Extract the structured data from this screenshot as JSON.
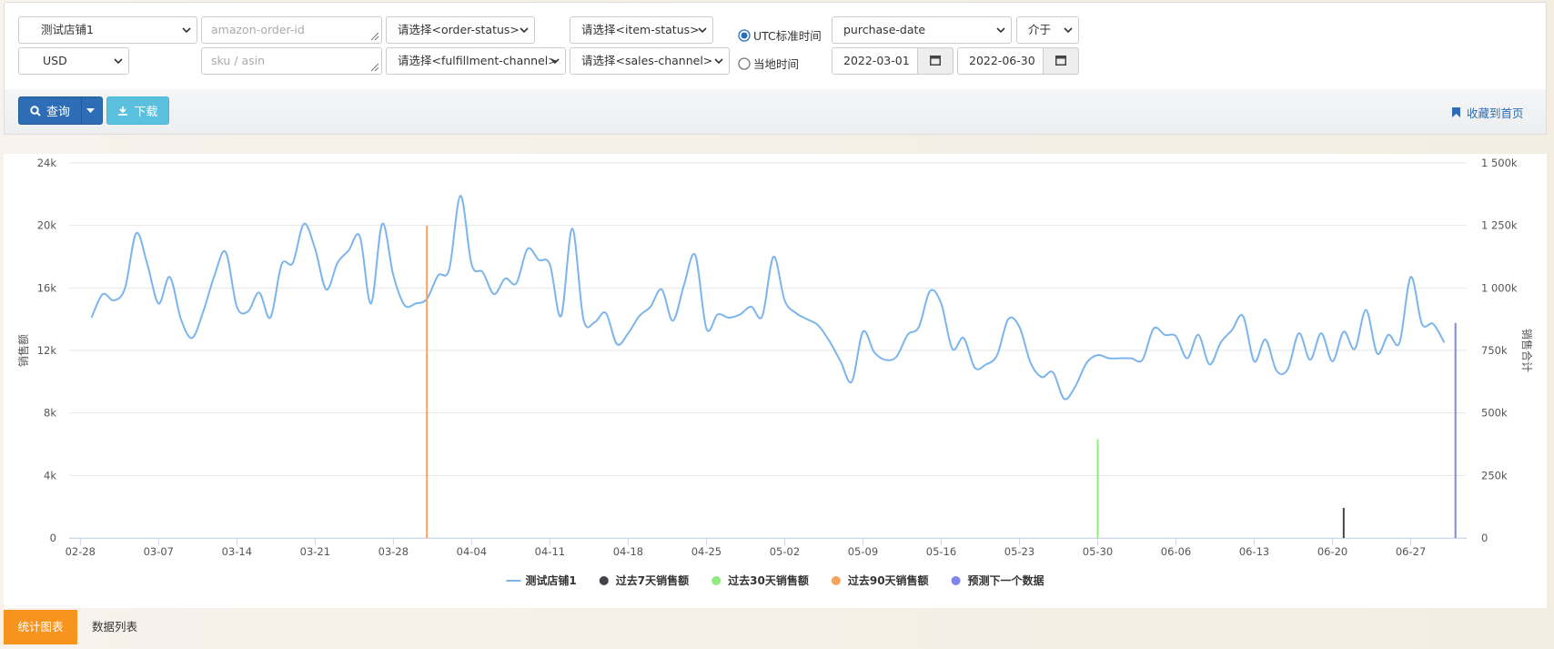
{
  "filters": {
    "store": "测试店铺1",
    "order_id_placeholder": "amazon-order-id",
    "order_status": "请选择<order-status>",
    "item_status": "请选择<item-status>",
    "utc": "UTC标准时间",
    "date_field": "purchase-date",
    "range_op": "介于",
    "currency": "USD",
    "sku_placeholder": "sku / asin",
    "fulfillment": "请选择<fulfillment-channel>",
    "sales_channel": "请选择<sales-channel>",
    "local": "当地时间",
    "start_date": "2022-03-01",
    "end_date": "2022-06-30"
  },
  "buttons": {
    "query": "查询",
    "download": "下载",
    "bookmark": "收藏到首页"
  },
  "tabs": [
    "统计图表",
    "数据列表"
  ],
  "chart_data": {
    "type": "line",
    "y_label": "销售额",
    "y2_label": "销售合计",
    "grid": true,
    "legend": "bottom",
    "xlim": [
      "02-27",
      "07-02"
    ],
    "xticks": [
      "02-28",
      "03-07",
      "03-14",
      "03-21",
      "03-28",
      "04-04",
      "04-11",
      "04-18",
      "04-25",
      "05-02",
      "05-09",
      "05-16",
      "05-23",
      "05-30",
      "06-06",
      "06-13",
      "06-20",
      "06-27"
    ],
    "ylim": [
      0,
      24000
    ],
    "yticks": [
      0,
      {
        "value": 4000,
        "label": "4k"
      },
      {
        "value": 8000,
        "label": "8k"
      },
      {
        "value": 12000,
        "label": "12k"
      },
      {
        "value": 16000,
        "label": "16k"
      },
      {
        "value": 20000,
        "label": "20k"
      },
      {
        "value": 24000,
        "label": "24k"
      }
    ],
    "y2lim": [
      0,
      1500000
    ],
    "y2ticks": [
      0,
      {
        "value": 250000,
        "label": "250k"
      },
      {
        "value": 500000,
        "label": "500k"
      },
      {
        "value": 750000,
        "label": "750k"
      },
      {
        "value": 1000000,
        "label": "1 000k"
      },
      {
        "value": 1250000,
        "label": "1 250k"
      },
      {
        "value": 1500000,
        "label": "1 500k"
      }
    ],
    "series": [
      {
        "name": "测试店铺1",
        "type": "line",
        "color": "#7cb5ec",
        "x": [
          "03-01",
          "03-02",
          "03-03",
          "03-04",
          "03-05",
          "03-06",
          "03-07",
          "03-08",
          "03-09",
          "03-10",
          "03-11",
          "03-12",
          "03-13",
          "03-14",
          "03-15",
          "03-16",
          "03-17",
          "03-18",
          "03-19",
          "03-20",
          "03-21",
          "03-22",
          "03-23",
          "03-24",
          "03-25",
          "03-26",
          "03-27",
          "03-28",
          "03-29",
          "03-30",
          "03-31",
          "04-01",
          "04-02",
          "04-03",
          "04-04",
          "04-05",
          "04-06",
          "04-07",
          "04-08",
          "04-09",
          "04-10",
          "04-11",
          "04-12",
          "04-13",
          "04-14",
          "04-15",
          "04-16",
          "04-17",
          "04-18",
          "04-19",
          "04-20",
          "04-21",
          "04-22",
          "04-23",
          "04-24",
          "04-25",
          "04-26",
          "04-27",
          "04-28",
          "04-29",
          "04-30",
          "05-01",
          "05-02",
          "05-03",
          "05-04",
          "05-05",
          "05-06",
          "05-07",
          "05-08",
          "05-09",
          "05-10",
          "05-11",
          "05-12",
          "05-13",
          "05-14",
          "05-15",
          "05-16",
          "05-17",
          "05-18",
          "05-19",
          "05-20",
          "05-21",
          "05-22",
          "05-23",
          "05-24",
          "05-25",
          "05-26",
          "05-27",
          "05-28",
          "05-29",
          "05-30",
          "05-31",
          "06-01",
          "06-02",
          "06-03",
          "06-04",
          "06-05",
          "06-06",
          "06-07",
          "06-08",
          "06-09",
          "06-10",
          "06-11",
          "06-12",
          "06-13",
          "06-14",
          "06-15",
          "06-16",
          "06-17",
          "06-18",
          "06-19",
          "06-20",
          "06-21",
          "06-22",
          "06-23",
          "06-24",
          "06-25",
          "06-26",
          "06-27",
          "06-28",
          "06-29",
          "06-30"
        ],
        "values": [
          14100,
          15600,
          15200,
          16000,
          19500,
          17500,
          15000,
          16700,
          14000,
          12800,
          14500,
          16800,
          18300,
          14800,
          14500,
          15700,
          14100,
          17500,
          17600,
          20100,
          18500,
          15900,
          17600,
          18400,
          19300,
          15000,
          20100,
          16800,
          14900,
          15000,
          15300,
          16800,
          17200,
          21900,
          17500,
          17000,
          15600,
          16600,
          16300,
          18500,
          17800,
          17500,
          14200,
          19800,
          14000,
          13800,
          14400,
          12400,
          13100,
          14200,
          14800,
          15900,
          13900,
          16200,
          18100,
          13400,
          14300,
          14100,
          14300,
          14800,
          14200,
          18000,
          15200,
          14400,
          14000,
          13600,
          12600,
          11300,
          10000,
          13200,
          11900,
          11400,
          11600,
          13000,
          13500,
          15800,
          15000,
          12100,
          12800,
          10900,
          11100,
          11700,
          14000,
          13500,
          11200,
          10300,
          10600,
          8900,
          9700,
          11200,
          11700,
          11500,
          11500,
          11500,
          11400,
          13400,
          13000,
          12900,
          11500,
          13000,
          11100,
          12500,
          13300,
          14200,
          11300,
          12700,
          10700,
          10800,
          13100,
          11400,
          13100,
          11300,
          13200,
          12100,
          14600,
          11800,
          13000,
          12500,
          16700,
          13700,
          13700,
          12500
        ]
      },
      {
        "name": "过去7天销售额",
        "type": "column",
        "axis": "y2",
        "color": "#434348",
        "x": [
          "06-21"
        ],
        "values": [
          120000
        ]
      },
      {
        "name": "过去30天销售额",
        "type": "column",
        "axis": "y2",
        "color": "#90ed7d",
        "x": [
          "05-30"
        ],
        "values": [
          395000
        ]
      },
      {
        "name": "过去90天销售额",
        "type": "column",
        "axis": "y2",
        "color": "#f7a35c",
        "x": [
          "03-31"
        ],
        "values": [
          1250000
        ]
      },
      {
        "name": "预测下一个数据",
        "type": "column",
        "axis": "y2",
        "color": "#8085e9",
        "x": [
          "07-01"
        ],
        "values": [
          860000
        ]
      }
    ]
  }
}
